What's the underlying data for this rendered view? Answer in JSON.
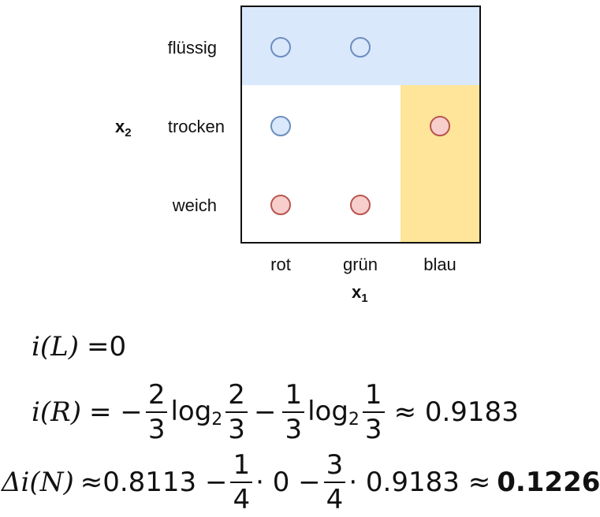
{
  "grid": {
    "rows": [
      "flüssig",
      "trocken",
      "weich"
    ],
    "cols": [
      "rot",
      "grün",
      "blau"
    ],
    "x_axis_label": "x",
    "x_axis_sub": "1",
    "y_axis_label": "x",
    "y_axis_sub": "2",
    "region_colors": {
      "top": "#dae8fc",
      "right": "#fff2cc",
      "right_fill": "#ffe599"
    },
    "point_colors": {
      "blue_fill": "#dae8fc",
      "blue_stroke": "#6c8ebf",
      "red_fill": "#f8cecc",
      "red_stroke": "#b85450"
    },
    "points": [
      {
        "row": "flüssig",
        "col": "rot",
        "class": "blue"
      },
      {
        "row": "flüssig",
        "col": "grün",
        "class": "blue"
      },
      {
        "row": "trocken",
        "col": "rot",
        "class": "blue"
      },
      {
        "row": "trocken",
        "col": "blau",
        "class": "red"
      },
      {
        "row": "weich",
        "col": "rot",
        "class": "red"
      },
      {
        "row": "weich",
        "col": "grün",
        "class": "red"
      }
    ]
  },
  "formulas": {
    "iL": {
      "lhs": "i(L)",
      "rhs": "=0"
    },
    "iR": {
      "lhs": "i(R)",
      "eq": "= −",
      "f1_num": "2",
      "f1_den": "3",
      "log1": "log",
      "log_base": "2",
      "f2_num": "2",
      "f2_den": "3",
      "minus": "−",
      "f3_num": "1",
      "f3_den": "3",
      "log2": "log",
      "f4_num": "1",
      "f4_den": "3",
      "approx": "≈ 0.9183"
    },
    "diN": {
      "lhs": "Δi(N)",
      "approx1": "≈0.8113 −",
      "f1_num": "1",
      "f1_den": "4",
      "mid": "· 0 −",
      "f2_num": "3",
      "f2_den": "4",
      "tail": "· 0.9183 ≈",
      "result": "0.1226"
    }
  }
}
